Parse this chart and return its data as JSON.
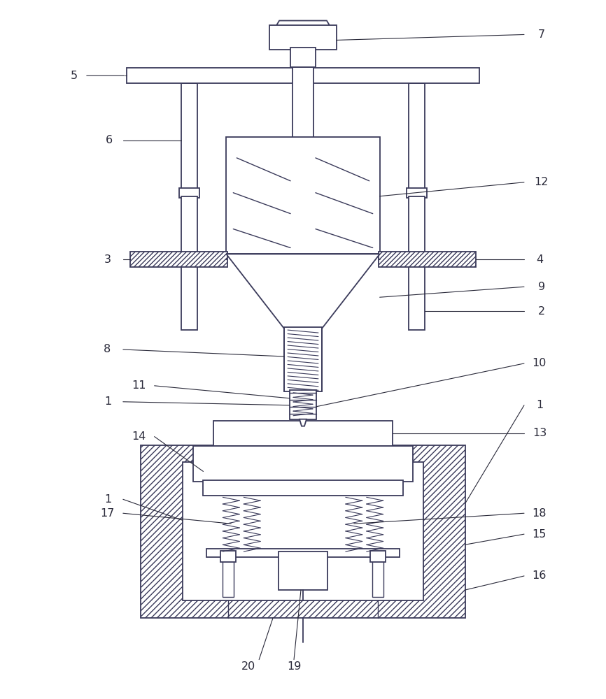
{
  "bg_color": "#ffffff",
  "lc": "#3a3a5a",
  "lc2": "#2a2a3a",
  "figsize": [
    8.66,
    10.0
  ],
  "dpi": 100
}
